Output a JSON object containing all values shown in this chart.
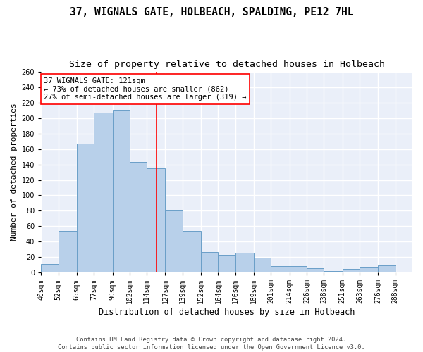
{
  "title1": "37, WIGNALS GATE, HOLBEACH, SPALDING, PE12 7HL",
  "title2": "Size of property relative to detached houses in Holbeach",
  "xlabel": "Distribution of detached houses by size in Holbeach",
  "ylabel": "Number of detached properties",
  "categories": [
    "40sqm",
    "52sqm",
    "65sqm",
    "77sqm",
    "90sqm",
    "102sqm",
    "114sqm",
    "127sqm",
    "139sqm",
    "152sqm",
    "164sqm",
    "176sqm",
    "189sqm",
    "201sqm",
    "214sqm",
    "226sqm",
    "238sqm",
    "251sqm",
    "263sqm",
    "276sqm",
    "288sqm"
  ],
  "values": [
    11,
    54,
    167,
    207,
    211,
    143,
    135,
    80,
    54,
    27,
    23,
    26,
    19,
    8,
    8,
    6,
    2,
    5,
    7,
    9,
    0
  ],
  "bar_color": "#b8d0ea",
  "bar_edge_color": "#6a9fc8",
  "annotation_box_text": "37 WIGNALS GATE: 121sqm\n← 73% of detached houses are smaller (862)\n27% of semi-detached houses are larger (319) →",
  "ylim": [
    0,
    260
  ],
  "yticks": [
    0,
    20,
    40,
    60,
    80,
    100,
    120,
    140,
    160,
    180,
    200,
    220,
    240,
    260
  ],
  "bg_color": "#eaeff9",
  "grid_color": "#ffffff",
  "footer1": "Contains HM Land Registry data © Crown copyright and database right 2024.",
  "footer2": "Contains public sector information licensed under the Open Government Licence v3.0.",
  "title1_fontsize": 10.5,
  "title2_fontsize": 9.5,
  "xlabel_fontsize": 8.5,
  "ylabel_fontsize": 8,
  "tick_fontsize": 7,
  "footer_fontsize": 6.2,
  "redline_x": 121
}
